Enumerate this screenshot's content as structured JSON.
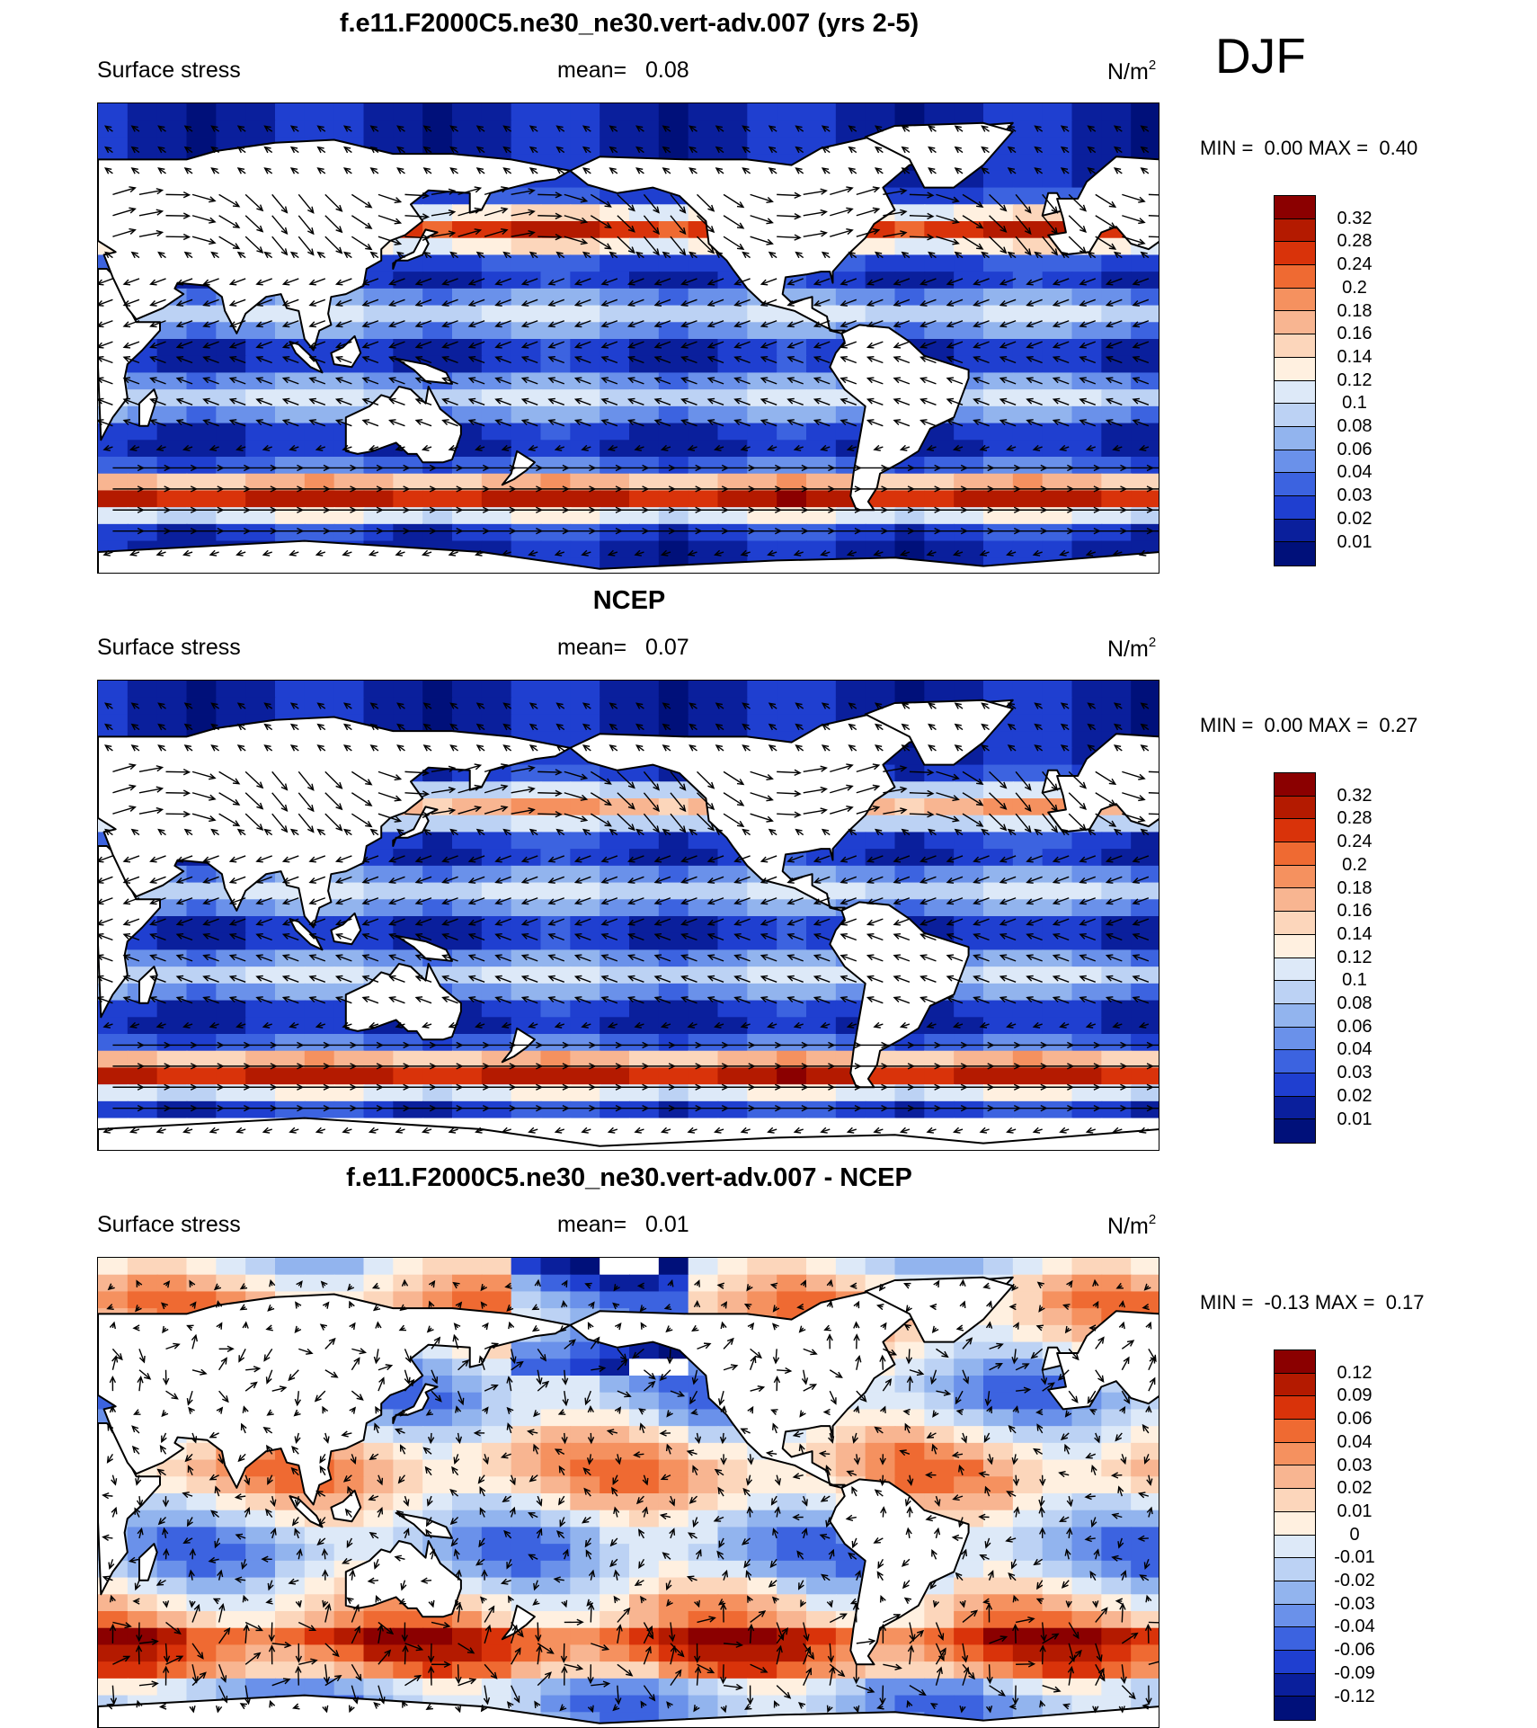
{
  "season": "DJF",
  "panels": [
    {
      "id": "model",
      "title": "f.e11.F2000C5.ne30_ne30.vert-adv.007 (yrs 2-5)",
      "variable": "Surface stress",
      "mean_label": "mean=",
      "mean_value": "0.08",
      "units_base": "N/m",
      "units_exp": "2",
      "min_label": "MIN =",
      "min_value": "0.00",
      "max_label": "MAX =",
      "max_value": "0.40",
      "colorbar_labels": [
        "0.32",
        "0.28",
        "0.24",
        "0.2",
        "0.18",
        "0.16",
        "0.14",
        "0.12",
        "0.1",
        "0.08",
        "0.06",
        "0.04",
        "0.03",
        "0.02",
        "0.01"
      ],
      "colorbar_colors": [
        "#8b0000",
        "#b41a00",
        "#d9330a",
        "#ef6a32",
        "#f5915f",
        "#f8b591",
        "#fcd6bb",
        "#fff0e0",
        "#dde9f8",
        "#bcd2f4",
        "#92b4ee",
        "#6a91ea",
        "#3c63e0",
        "#1f3fd0",
        "#0a1f9c",
        "#00107a"
      ]
    },
    {
      "id": "obs",
      "title": "NCEP",
      "variable": "Surface stress",
      "mean_label": "mean=",
      "mean_value": "0.07",
      "units_base": "N/m",
      "units_exp": "2",
      "min_label": "MIN =",
      "min_value": "0.00",
      "max_label": "MAX =",
      "max_value": "0.27",
      "colorbar_labels": [
        "0.32",
        "0.28",
        "0.24",
        "0.2",
        "0.18",
        "0.16",
        "0.14",
        "0.12",
        "0.1",
        "0.08",
        "0.06",
        "0.04",
        "0.03",
        "0.02",
        "0.01"
      ],
      "colorbar_colors": [
        "#8b0000",
        "#b41a00",
        "#d9330a",
        "#ef6a32",
        "#f5915f",
        "#f8b591",
        "#fcd6bb",
        "#fff0e0",
        "#dde9f8",
        "#bcd2f4",
        "#92b4ee",
        "#6a91ea",
        "#3c63e0",
        "#1f3fd0",
        "#0a1f9c",
        "#00107a"
      ]
    },
    {
      "id": "diff",
      "title": "f.e11.F2000C5.ne30_ne30.vert-adv.007 - NCEP",
      "variable": "Surface stress",
      "mean_label": "mean=",
      "mean_value": "0.01",
      "units_base": "N/m",
      "units_exp": "2",
      "min_label": "MIN =",
      "min_value": "-0.13",
      "max_label": "MAX =",
      "max_value": "0.17",
      "colorbar_labels": [
        "0.12",
        "0.09",
        "0.06",
        "0.04",
        "0.03",
        "0.02",
        "0.01",
        "0",
        "-0.01",
        "-0.02",
        "-0.03",
        "-0.04",
        "-0.06",
        "-0.09",
        "-0.12"
      ],
      "colorbar_colors": [
        "#8b0000",
        "#b41a00",
        "#d9330a",
        "#ef6a32",
        "#f5915f",
        "#f8b591",
        "#fcd6bb",
        "#fff0e0",
        "#dde9f8",
        "#bcd2f4",
        "#92b4ee",
        "#6a91ea",
        "#3c63e0",
        "#1f3fd0",
        "#0a1f9c",
        "#00107a"
      ]
    }
  ],
  "map_colors": {
    "land": "#ffffff",
    "coast": "#000000",
    "arrow": "#000000"
  }
}
